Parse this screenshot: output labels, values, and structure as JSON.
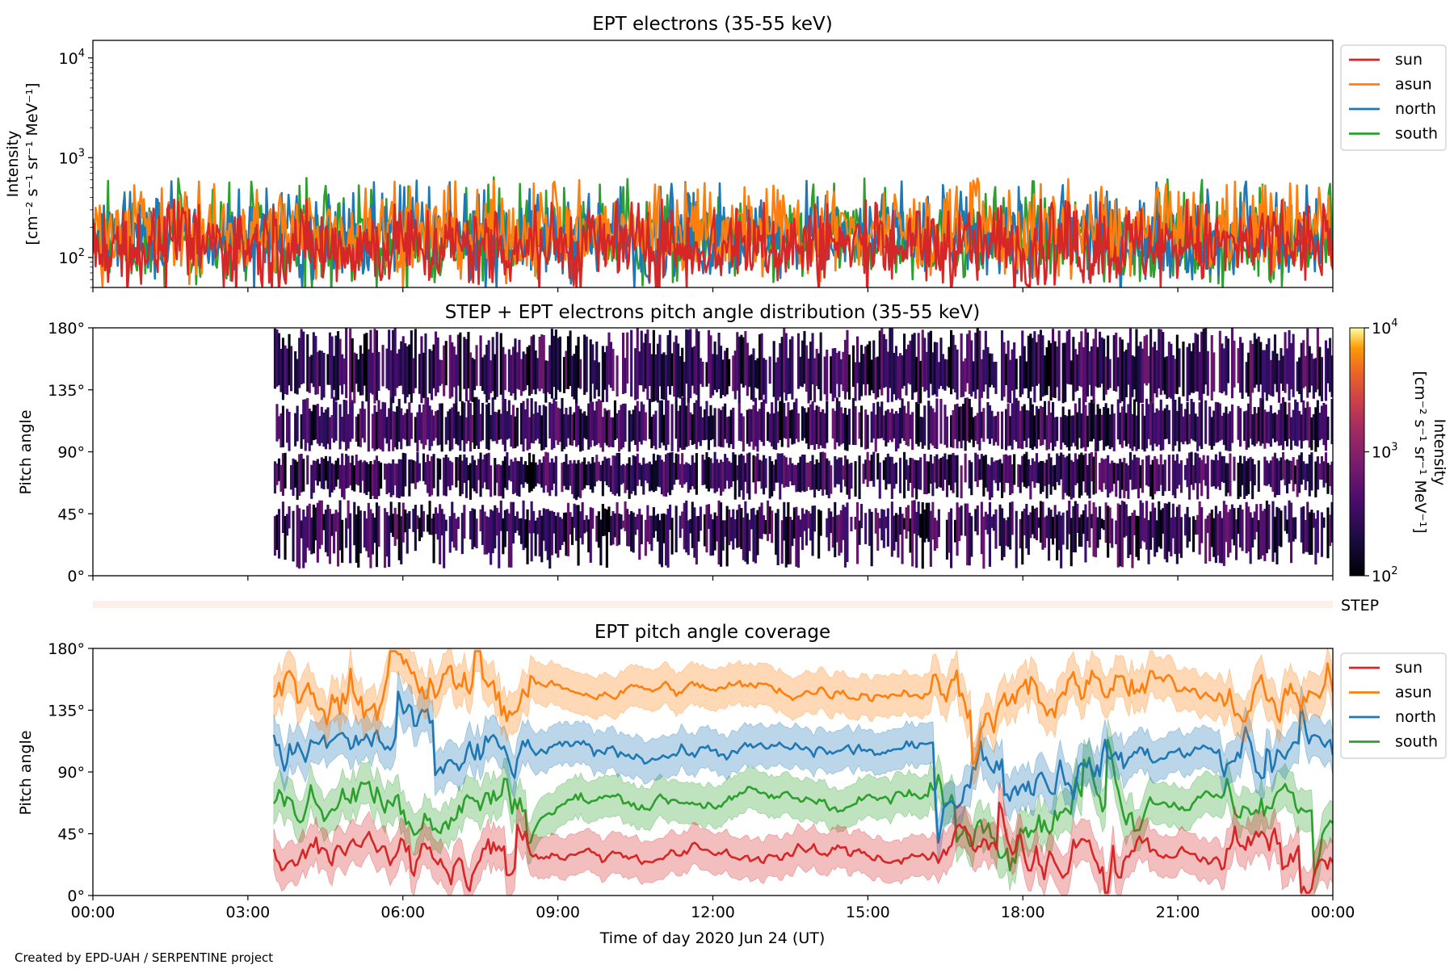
{
  "figure": {
    "footer": "Created by EPD-UAH / SERPENTINE project",
    "xlabel": "Time of day 2020 Jun 24 (UT)",
    "xticks": [
      "00:00",
      "03:00",
      "06:00",
      "09:00",
      "12:00",
      "15:00",
      "18:00",
      "21:00",
      "00:00"
    ],
    "colors": {
      "sun": "#d62728",
      "asun": "#ff7f0e",
      "north": "#1f77b4",
      "south": "#2ca02c"
    }
  },
  "chart_data": [
    {
      "type": "line",
      "title": "EPT electrons (35-55 keV)",
      "ylabel_line1": "Intensity",
      "ylabel_line2": "[cm⁻² s⁻¹ sr⁻¹ MeV⁻¹]",
      "yscale": "log",
      "ylim": [
        50,
        15000
      ],
      "yticks": [
        {
          "value": 100,
          "base": "10",
          "exp": "2"
        },
        {
          "value": 1000,
          "base": "10",
          "exp": "3"
        },
        {
          "value": 10000,
          "base": "10",
          "exp": "4"
        }
      ],
      "xlim_hours": [
        0,
        24
      ],
      "legend_position": "outside-right",
      "series": [
        {
          "name": "sun",
          "color": "#d62728",
          "typical": 130,
          "peak": 380
        },
        {
          "name": "asun",
          "color": "#ff7f0e",
          "typical": 180,
          "peak": 620
        },
        {
          "name": "north",
          "color": "#1f77b4",
          "typical": 160,
          "peak": 590
        },
        {
          "name": "south",
          "color": "#2ca02c",
          "typical": 150,
          "peak": 640
        }
      ]
    },
    {
      "type": "heatmap",
      "title": "STEP + EPT electrons pitch angle distribution (35-55 keV)",
      "ylabel": "Pitch angle",
      "yticks": [
        "0°",
        "45°",
        "90°",
        "135°",
        "180°"
      ],
      "ylim": [
        0,
        180
      ],
      "data_start_hour": 3.5,
      "colorbar": {
        "label_line1": "Intensity",
        "label_line2": "[cm⁻² s⁻¹ sr⁻¹ MeV⁻¹]",
        "scale": "log",
        "range": [
          100,
          10000
        ],
        "ticks": [
          {
            "base": "10",
            "exp": "2"
          },
          {
            "base": "10",
            "exp": "3"
          },
          {
            "base": "10",
            "exp": "4"
          }
        ],
        "cmap": "inferno"
      }
    },
    {
      "type": "bar",
      "label": "STEP",
      "color": "#fdf0e8"
    },
    {
      "type": "line",
      "title": "EPT pitch angle coverage",
      "ylabel": "Pitch angle",
      "yticks": [
        "0°",
        "45°",
        "90°",
        "135°",
        "180°"
      ],
      "ylim": [
        0,
        180
      ],
      "xlim_hours": [
        0,
        24
      ],
      "data_start_hour": 3.5,
      "legend_position": "outside-right",
      "series": [
        {
          "name": "sun",
          "color": "#d62728",
          "typical_deg": 30
        },
        {
          "name": "asun",
          "color": "#ff7f0e",
          "typical_deg": 150
        },
        {
          "name": "north",
          "color": "#1f77b4",
          "typical_deg": 105
        },
        {
          "name": "south",
          "color": "#2ca02c",
          "typical_deg": 70
        }
      ]
    }
  ]
}
